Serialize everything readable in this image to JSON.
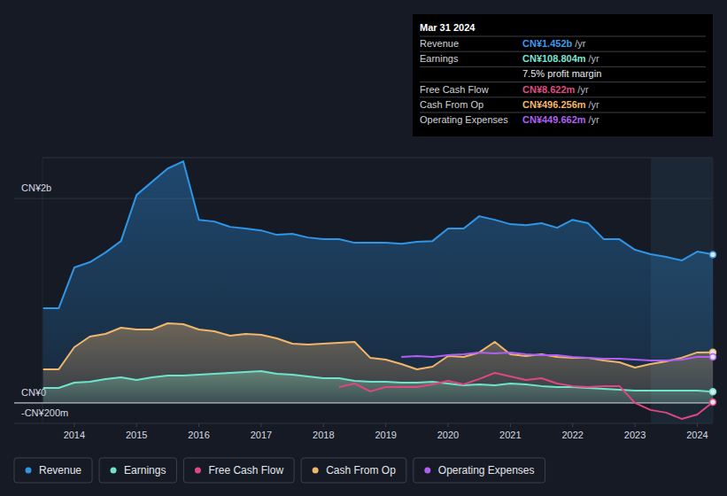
{
  "chart_data": {
    "type": "line",
    "x": [
      2013.5,
      2013.75,
      2014,
      2014.25,
      2014.5,
      2014.75,
      2015,
      2015.25,
      2015.5,
      2015.75,
      2016,
      2016.25,
      2016.5,
      2016.75,
      2017,
      2017.25,
      2017.5,
      2017.75,
      2018,
      2018.25,
      2018.5,
      2018.75,
      2019,
      2019.25,
      2019.5,
      2019.75,
      2020,
      2020.25,
      2020.5,
      2020.75,
      2021,
      2021.25,
      2021.5,
      2021.75,
      2022,
      2022.25,
      2022.5,
      2022.75,
      2023,
      2023.25,
      2023.5,
      2023.75,
      2024,
      2024.25
    ],
    "xlim": [
      2013.49,
      2024.25
    ],
    "xticks": [
      2014,
      2015,
      2016,
      2017,
      2018,
      2019,
      2020,
      2021,
      2022,
      2023,
      2024
    ],
    "ylim": [
      -200,
      2400
    ],
    "yticks": [
      {
        "value": -200,
        "label": "-CN¥200m"
      },
      {
        "value": 0,
        "label": "CN¥0"
      },
      {
        "value": 2000,
        "label": "CN¥2b"
      }
    ],
    "grid": true,
    "legend": "bottom",
    "series": [
      {
        "name": "Revenue",
        "color": "#2f95e6",
        "type": "area",
        "values": [
          926,
          926,
          1325,
          1377,
          1472,
          1584,
          2035,
          2165,
          2294,
          2364,
          1792,
          1775,
          1723,
          1706,
          1688,
          1645,
          1654,
          1619,
          1602,
          1602,
          1567,
          1567,
          1567,
          1558,
          1576,
          1584,
          1706,
          1706,
          1827,
          1792,
          1749,
          1740,
          1758,
          1714,
          1792,
          1758,
          1602,
          1602,
          1498,
          1455,
          1429,
          1394,
          1481,
          1452
        ]
      },
      {
        "name": "Earnings",
        "color": "#6fe3cc",
        "type": "area",
        "values": [
          147,
          147,
          199,
          208,
          234,
          251,
          225,
          251,
          268,
          268,
          277,
          286,
          294,
          303,
          312,
          286,
          277,
          260,
          242,
          242,
          216,
          208,
          208,
          199,
          199,
          208,
          190,
          173,
          182,
          173,
          190,
          182,
          165,
          156,
          156,
          147,
          139,
          130,
          121,
          121,
          121,
          121,
          121,
          108.8
        ]
      },
      {
        "name": "Free Cash Flow",
        "color": "#e0467f",
        "type": "line",
        "values": [
          null,
          null,
          null,
          null,
          null,
          null,
          null,
          null,
          null,
          null,
          null,
          null,
          null,
          null,
          null,
          null,
          null,
          null,
          null,
          156,
          190,
          113,
          156,
          156,
          156,
          182,
          216,
          182,
          234,
          294,
          260,
          225,
          242,
          190,
          165,
          156,
          165,
          165,
          0,
          -69,
          -95,
          -156,
          -113,
          8.6
        ]
      },
      {
        "name": "Cash From Op",
        "color": "#f2b66b",
        "type": "area",
        "values": [
          329,
          329,
          545,
          649,
          675,
          736,
          719,
          719,
          779,
          771,
          719,
          701,
          658,
          675,
          667,
          632,
          580,
          571,
          580,
          589,
          597,
          442,
          424,
          381,
          329,
          355,
          459,
          450,
          494,
          597,
          476,
          459,
          476,
          450,
          442,
          442,
          416,
          398,
          346,
          381,
          407,
          442,
          494,
          496.3
        ]
      },
      {
        "name": "Operating Expenses",
        "color": "#b05ef4",
        "type": "line",
        "values": [
          null,
          null,
          null,
          null,
          null,
          null,
          null,
          null,
          null,
          null,
          null,
          null,
          null,
          null,
          null,
          null,
          null,
          null,
          null,
          null,
          null,
          null,
          null,
          450,
          459,
          450,
          468,
          476,
          494,
          485,
          494,
          476,
          468,
          468,
          450,
          442,
          433,
          433,
          424,
          416,
          416,
          424,
          450,
          449.7
        ]
      }
    ],
    "tooltip": {
      "date": "Mar 31 2024",
      "rows": [
        {
          "label": "Revenue",
          "value": "CN¥1.452b",
          "unit": "/yr",
          "color": "#3b9cf0"
        },
        {
          "label": "Earnings",
          "value": "CN¥108.804m",
          "unit": "/yr",
          "color": "#7de3cf"
        },
        {
          "label": "Free Cash Flow",
          "value": "CN¥8.622m",
          "unit": "/yr",
          "color": "#e04a86"
        },
        {
          "label": "Cash From Op",
          "value": "CN¥496.256m",
          "unit": "/yr",
          "color": "#f2b76b"
        },
        {
          "label": "Operating Expenses",
          "value": "CN¥449.662m",
          "unit": "/yr",
          "color": "#b15ff5"
        }
      ],
      "profit_margin": "7.5% profit margin"
    }
  }
}
